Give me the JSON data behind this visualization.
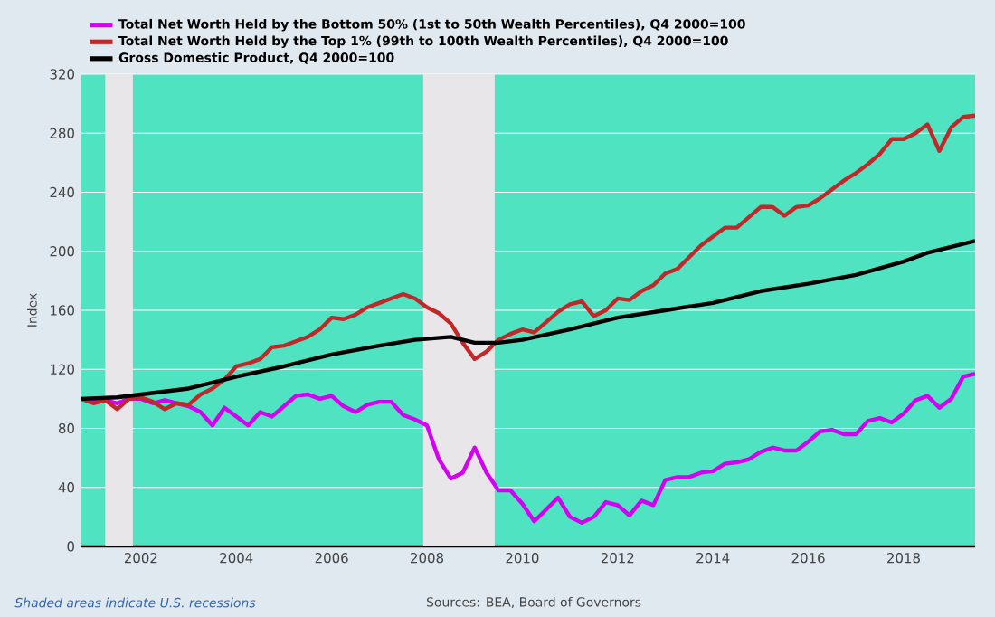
{
  "chart_data": {
    "type": "line",
    "ylabel": "Index",
    "x": [
      2000.75,
      2001,
      2001.25,
      2001.5,
      2001.75,
      2002,
      2002.25,
      2002.5,
      2002.75,
      2003,
      2003.25,
      2003.5,
      2003.75,
      2004,
      2004.25,
      2004.5,
      2004.75,
      2005,
      2005.25,
      2005.5,
      2005.75,
      2006,
      2006.25,
      2006.5,
      2006.75,
      2007,
      2007.25,
      2007.5,
      2007.75,
      2008,
      2008.25,
      2008.5,
      2008.75,
      2009,
      2009.25,
      2009.5,
      2009.75,
      2010,
      2010.25,
      2010.5,
      2010.75,
      2011,
      2011.25,
      2011.5,
      2011.75,
      2012,
      2012.25,
      2012.5,
      2012.75,
      2013,
      2013.25,
      2013.5,
      2013.75,
      2014,
      2014.25,
      2014.5,
      2014.75,
      2015,
      2015.25,
      2015.5,
      2015.75,
      2016,
      2016.25,
      2016.5,
      2016.75,
      2017,
      2017.25,
      2017.5,
      2017.75,
      2018,
      2018.25,
      2018.5,
      2018.75,
      2019,
      2019.25,
      2019.5
    ],
    "series": [
      {
        "name": "Total Net Worth Held by the Bottom 50% (1st to 50th Wealth Percentiles), Q4 2000=100",
        "color": "#d400f0",
        "values": [
          100,
          98,
          99,
          97,
          100,
          100,
          97,
          99,
          97,
          95,
          91,
          82,
          94,
          88,
          82,
          91,
          88,
          95,
          102,
          103,
          100,
          102,
          95,
          91,
          96,
          98,
          98,
          89,
          86,
          82,
          59,
          46,
          50,
          67,
          50,
          38,
          38,
          29,
          17,
          25,
          33,
          20,
          16,
          20,
          30,
          28,
          21,
          31,
          28,
          45,
          47,
          47,
          50,
          51,
          56,
          57,
          59,
          64,
          67,
          65,
          65,
          71,
          78,
          79,
          76,
          76,
          85,
          87,
          84,
          90,
          99,
          102,
          94,
          100,
          115,
          117
        ]
      },
      {
        "name": "Total Net Worth Held by the Top 1% (99th to 100th Wealth Percentiles), Q4 2000=100",
        "color": "#c0282a",
        "values": [
          100,
          97,
          99,
          93,
          100,
          101,
          98,
          93,
          97,
          96,
          103,
          107,
          113,
          122,
          124,
          127,
          135,
          136,
          139,
          142,
          147,
          155,
          154,
          157,
          162,
          165,
          168,
          171,
          168,
          162,
          158,
          151,
          138,
          127,
          132,
          140,
          144,
          147,
          145,
          152,
          159,
          164,
          166,
          156,
          160,
          168,
          167,
          173,
          177,
          185,
          188,
          196,
          204,
          210,
          216,
          216,
          223,
          230,
          230,
          224,
          230,
          231,
          236,
          242,
          248,
          253,
          259,
          266,
          276,
          276,
          280,
          286,
          268,
          284,
          291,
          292
        ]
      },
      {
        "name": "Gross Domestic Product, Q4 2000=100",
        "color": "#000000",
        "x": [
          2000.75,
          2001.5,
          2002,
          2003,
          2004,
          2005,
          2006,
          2007,
          2007.75,
          2008.5,
          2009,
          2009.5,
          2010,
          2011,
          2012,
          2013,
          2014,
          2015,
          2016,
          2017,
          2018,
          2018.5,
          2019,
          2019.5
        ],
        "values": [
          100,
          101,
          103,
          107,
          115,
          122,
          130,
          136,
          140,
          142,
          138,
          138,
          140,
          147,
          155,
          160,
          165,
          173,
          178,
          184,
          193,
          199,
          203,
          207
        ]
      }
    ],
    "xlim": [
      2000.75,
      2019.5
    ],
    "xticks": [
      2002,
      2004,
      2006,
      2008,
      2010,
      2012,
      2014,
      2016,
      2018
    ],
    "ylim": [
      0,
      320
    ],
    "yticks": [
      0,
      40,
      80,
      120,
      160,
      200,
      240,
      280,
      320
    ],
    "bands": [
      {
        "axis": "x",
        "from": 2001.25,
        "to": 2001.83,
        "color": "#e8e6e8"
      },
      {
        "axis": "x",
        "from": 2007.92,
        "to": 2009.42,
        "color": "#e8e6e8"
      }
    ],
    "grid": "y",
    "legend": "top left",
    "marker": "none",
    "line_style": "solid",
    "annotations": [
      "Shaded areas indicate U.S. recessions",
      "Sources: BEA, Board of Governors"
    ]
  }
}
